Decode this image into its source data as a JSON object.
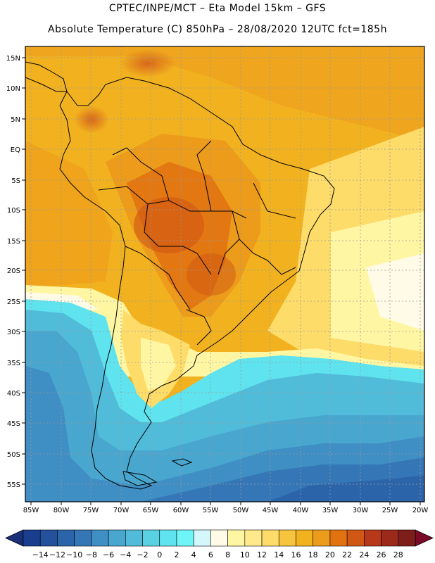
{
  "header": {
    "line1": "CPTEC/INPE/MCT –  Eta Model 15km – GFS",
    "line2": "Absolute Temperature (C) 850hPa – 28/08/2020 12UTC fct=185h"
  },
  "axes": {
    "lat_labels": [
      "15N",
      "10N",
      "5N",
      "EQ",
      "5S",
      "10S",
      "15S",
      "20S",
      "25S",
      "30S",
      "35S",
      "40S",
      "45S",
      "50S",
      "55S"
    ],
    "lon_labels": [
      "85W",
      "80W",
      "75W",
      "70W",
      "65W",
      "60W",
      "55W",
      "50W",
      "45W",
      "40W",
      "35W",
      "30W",
      "25W",
      "20W"
    ]
  },
  "colorbar": {
    "labels": [
      "-14",
      "-12",
      "-10",
      "-8",
      "-6",
      "-4",
      "-2",
      "0",
      "2",
      "4",
      "6",
      "8",
      "10",
      "12",
      "14",
      "16",
      "18",
      "20",
      "22",
      "24",
      "26",
      "28"
    ],
    "colors": [
      "#1a3e8f",
      "#23519c",
      "#2c64aa",
      "#3577b6",
      "#3f8ec4",
      "#48a6cf",
      "#50bcd9",
      "#58d1e3",
      "#5fe3ee",
      "#6ef5f7",
      "#d3f7fb",
      "#fffbe6",
      "#fff6a4",
      "#ffe98a",
      "#fddc6a",
      "#f6c43e",
      "#f2b21f",
      "#ec9b1b",
      "#e2710f",
      "#d05714",
      "#b8381a",
      "#9b2a1b",
      "#7e1e1a"
    ],
    "end_left": "#1b2f78",
    "end_right": "#7a0a28"
  }
}
